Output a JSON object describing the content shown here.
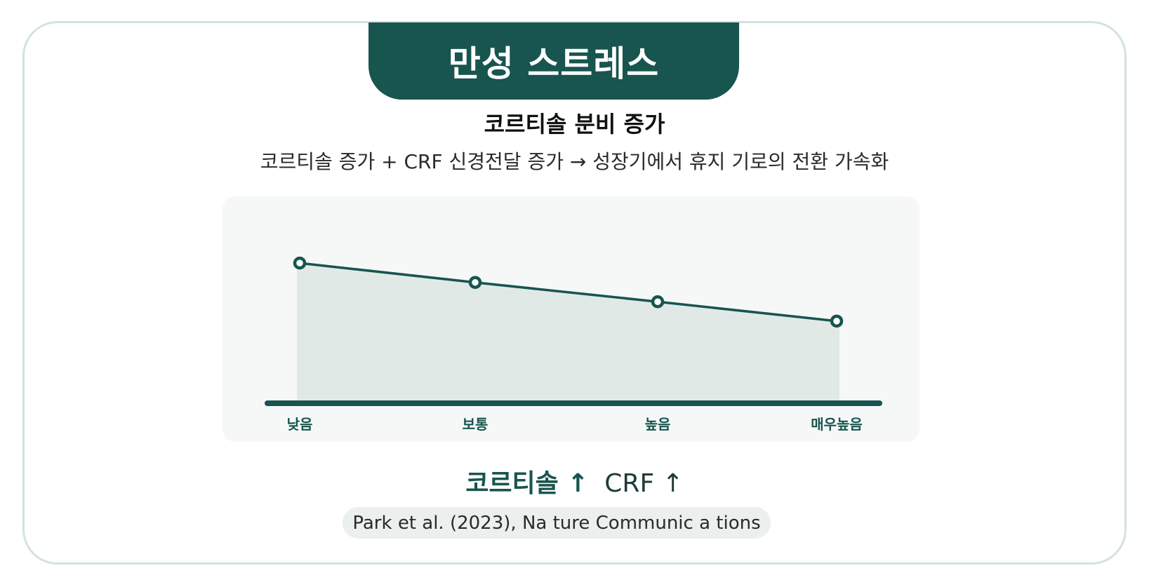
{
  "header": {
    "title": "만성 스트레스"
  },
  "subtitle": "코르티솔 분비 증가",
  "description": "코르티솔 증가 + CRF 신경전달 증가 → 성장기에서 휴지 기로의 전환 가속화",
  "colors": {
    "primary": "#18554f",
    "area_fill": "#e1e9e6",
    "panel_bg": "#f5f8f7"
  },
  "chart_data": {
    "type": "area",
    "categories": [
      "낮음",
      "보통",
      "높음",
      "매우높음"
    ],
    "values": [
      100,
      80,
      60,
      40
    ],
    "ylim": [
      -45,
      140
    ],
    "grid": false,
    "title": "",
    "xlabel": "",
    "ylabel": ""
  },
  "formula": {
    "part1": "코르티솔 ↑",
    "part2": "CRF ↑"
  },
  "citation": "Park et al. (2023), Na ture Communic a tions"
}
